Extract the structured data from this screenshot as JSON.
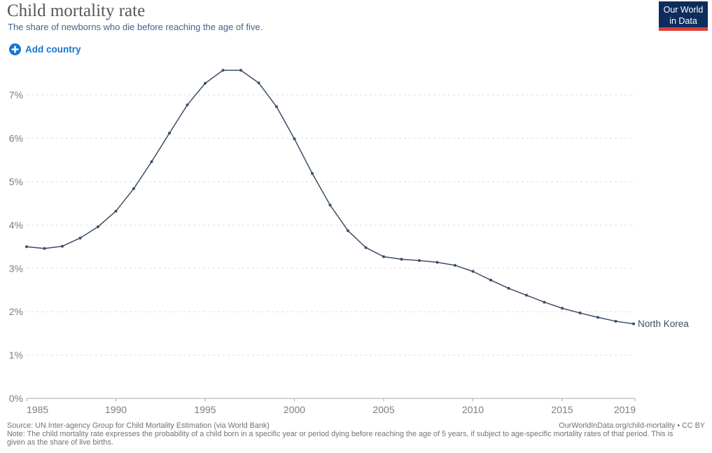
{
  "header": {
    "title": "Child mortality rate",
    "subtitle": "The share of newborns who die before reaching the age of five."
  },
  "logo": {
    "line1": "Our World",
    "line2": "in Data"
  },
  "controls": {
    "add_country_label": "Add country"
  },
  "chart_data": {
    "type": "line",
    "title": "Child mortality rate",
    "x": [
      1985,
      1986,
      1987,
      1988,
      1989,
      1990,
      1991,
      1992,
      1993,
      1994,
      1995,
      1996,
      1997,
      1998,
      1999,
      2000,
      2001,
      2002,
      2003,
      2004,
      2005,
      2006,
      2007,
      2008,
      2009,
      2010,
      2011,
      2012,
      2013,
      2014,
      2015,
      2016,
      2017,
      2018,
      2019
    ],
    "series": [
      {
        "name": "North Korea",
        "values": [
          3.5,
          3.46,
          3.51,
          3.7,
          3.96,
          4.32,
          4.84,
          5.46,
          6.12,
          6.77,
          7.27,
          7.57,
          7.57,
          7.28,
          6.73,
          5.99,
          5.19,
          4.46,
          3.87,
          3.48,
          3.27,
          3.21,
          3.18,
          3.14,
          3.07,
          2.93,
          2.73,
          2.54,
          2.38,
          2.22,
          2.08,
          1.97,
          1.87,
          1.78,
          1.72
        ],
        "color": "#3d4e66"
      }
    ],
    "x_ticks": [
      1985,
      1990,
      1995,
      2000,
      2005,
      2010,
      2015,
      2019
    ],
    "y_ticks": [
      0,
      1,
      2,
      3,
      4,
      5,
      6,
      7
    ],
    "y_tick_suffix": "%",
    "xlim": [
      1985,
      2019
    ],
    "ylim": [
      0,
      7.7
    ],
    "grid": "horizontal-dashed",
    "end_label": "North Korea"
  },
  "footer": {
    "source": "Source: UN Inter-agency Group for Child Mortality Estimation (via World Bank)",
    "right_link": "OurWorldInData.org/child-mortality • CC BY",
    "note": "Note: The child mortality rate expresses the probability of a child born in a specific year or period dying before reaching the age of 5 years, if subject to age-specific mortality rates of that period. This is given as the share of live births."
  },
  "colors": {
    "line": "#3d4e66",
    "add_country_blue": "#1576d1",
    "logo_navy": "#0d2d5c",
    "logo_red": "#dc3d36",
    "grid": "#dddddd",
    "axis": "#a8a8a8",
    "tick_label": "#7d7d7d",
    "title_gray": "#545759",
    "subtitle_blue": "#44618f",
    "footer_gray": "#737373"
  }
}
